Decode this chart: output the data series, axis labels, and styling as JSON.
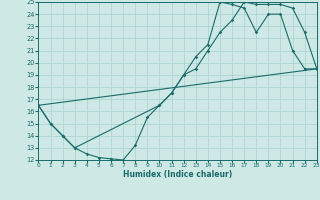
{
  "xlabel": "Humidex (Indice chaleur)",
  "bg_color": "#cde8e5",
  "line_color": "#1a6b6b",
  "grid_color": "#a8d0cc",
  "xlim": [
    0,
    23
  ],
  "ylim": [
    12,
    25
  ],
  "xticks": [
    0,
    1,
    2,
    3,
    4,
    5,
    6,
    7,
    8,
    9,
    10,
    11,
    12,
    13,
    14,
    15,
    16,
    17,
    18,
    19,
    20,
    21,
    22,
    23
  ],
  "yticks": [
    12,
    13,
    14,
    15,
    16,
    17,
    18,
    19,
    20,
    21,
    22,
    23,
    24,
    25
  ],
  "line1_x": [
    0,
    1,
    2,
    3,
    4,
    5,
    6,
    7,
    8,
    9,
    10,
    11,
    12,
    13,
    14,
    15,
    16,
    17,
    18,
    19,
    20,
    21,
    22,
    23
  ],
  "line1_y": [
    16.5,
    15.0,
    14.0,
    13.0,
    12.5,
    12.2,
    12.1,
    12.0,
    13.2,
    15.5,
    16.5,
    17.5,
    19.0,
    19.5,
    21.0,
    22.5,
    23.5,
    25.0,
    24.8,
    24.8,
    24.8,
    24.5,
    22.5,
    19.5
  ],
  "line2_x": [
    0,
    1,
    2,
    3,
    10,
    11,
    12,
    13,
    14,
    15,
    16,
    17,
    18,
    19,
    20,
    21,
    22,
    23
  ],
  "line2_y": [
    16.5,
    15.0,
    14.0,
    13.0,
    16.5,
    17.5,
    19.0,
    20.5,
    21.5,
    25.0,
    24.8,
    24.5,
    22.5,
    24.0,
    24.0,
    21.0,
    19.5,
    19.5
  ],
  "line3_x": [
    0,
    23
  ],
  "line3_y": [
    16.5,
    19.5
  ]
}
